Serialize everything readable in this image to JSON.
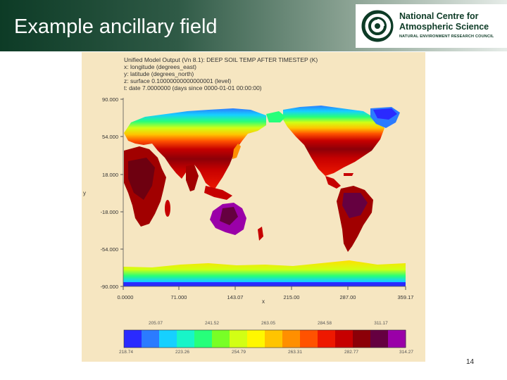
{
  "slide": {
    "title": "Example ancillary field",
    "page_number": "14"
  },
  "logo": {
    "line1": "National Centre for",
    "line2": "Atmospheric Science",
    "line3": "NATURAL ENVIRONMENT RESEARCH COUNCIL",
    "icon": "ncas-swirl-logo",
    "color": "#0d3b26"
  },
  "plot": {
    "metadata_lines": [
      "Unified Model Output (Vn 8.1): DEEP SOIL TEMP AFTER TIMESTEP (K)",
      "x: longitude (degrees_east)",
      "y: latitude (degrees_north)",
      "z: surface 0.10000000000000001 (level)",
      "t: date 7.0000000 (days since 0000-01-01 00:00:00)"
    ],
    "y_axis_letter": "y",
    "x_axis_letter": "x",
    "y_ticks": [
      "90.000",
      "54.000",
      "18.000",
      "-18.000",
      "-54.000",
      "-90.000"
    ],
    "x_ticks": [
      "0.0000",
      "71.000",
      "143.07",
      "215.00",
      "287.00",
      "359.17"
    ],
    "colorbar": {
      "top_labels": [
        "205.07",
        "241.52",
        "263.05",
        "284.58",
        "311.17"
      ],
      "bottom_labels": [
        "218.74",
        "223.26",
        "254.79",
        "263.31",
        "282.77",
        "314.27"
      ],
      "colors": [
        "#2a2aff",
        "#2b7bff",
        "#16d0ff",
        "#18f5c8",
        "#27ff7a",
        "#78ff26",
        "#d2ff14",
        "#fff700",
        "#ffc400",
        "#ff8f00",
        "#ff5200",
        "#ee1800",
        "#c60000",
        "#8c0008",
        "#650040",
        "#9a00a8"
      ]
    },
    "ocean_color": "#f6e6c1"
  }
}
